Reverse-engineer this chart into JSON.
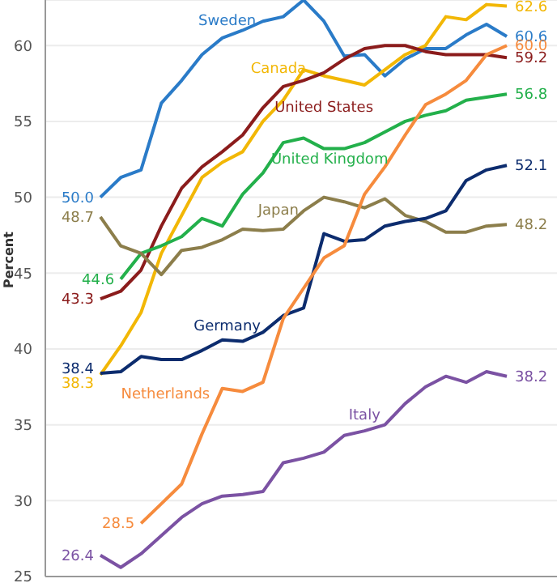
{
  "chart_data": {
    "type": "line",
    "ylabel": "Percent",
    "categories": [
      null,
      null,
      null,
      null,
      null,
      null,
      null,
      null,
      null,
      null,
      null,
      null,
      null,
      null,
      null,
      null,
      null,
      null,
      null,
      null,
      null
    ],
    "ylim": [
      25,
      63
    ],
    "yticks": [
      25,
      30,
      35,
      40,
      45,
      50,
      55,
      60
    ],
    "grid": "y",
    "legend": false,
    "marker": "none",
    "line_style": "solid",
    "series": [
      {
        "name": "Sweden",
        "color": "#2a7bc8",
        "values": [
          50.0,
          51.3,
          51.8,
          56.2,
          57.7,
          59.4,
          60.5,
          61.0,
          61.6,
          61.9,
          63.0,
          61.6,
          59.3,
          59.4,
          58.0,
          59.1,
          59.8,
          59.8,
          60.7,
          61.4,
          60.6
        ],
        "value_labels": [
          "50.0",
          null,
          null,
          null,
          null,
          null,
          null,
          null,
          null,
          null,
          null,
          null,
          null,
          null,
          null,
          null,
          null,
          null,
          null,
          null,
          "60.6"
        ]
      },
      {
        "name": "Canada",
        "color": "#f2b705",
        "values": [
          38.3,
          40.2,
          42.4,
          46.3,
          48.8,
          51.3,
          52.3,
          53.0,
          55.0,
          56.4,
          58.4,
          58.0,
          57.7,
          57.4,
          58.4,
          59.4,
          60.0,
          61.9,
          61.7,
          62.7,
          62.6
        ],
        "value_labels": [
          "38.3",
          null,
          null,
          null,
          null,
          null,
          null,
          null,
          null,
          null,
          null,
          null,
          null,
          null,
          null,
          null,
          null,
          null,
          null,
          null,
          "62.6"
        ]
      },
      {
        "name": "United States",
        "color": "#8b1c1c",
        "values": [
          43.3,
          43.8,
          45.2,
          48.1,
          50.6,
          52.0,
          53.0,
          54.1,
          55.9,
          57.3,
          57.7,
          58.2,
          59.1,
          59.8,
          60.0,
          60.0,
          59.6,
          59.4,
          59.4,
          59.4,
          59.2
        ],
        "value_labels": [
          "43.3",
          null,
          null,
          null,
          null,
          null,
          null,
          null,
          null,
          null,
          null,
          null,
          null,
          null,
          null,
          null,
          null,
          null,
          null,
          null,
          "59.2"
        ]
      },
      {
        "name": "United Kingdom",
        "color": "#23b04b",
        "values": [
          null,
          44.6,
          46.3,
          46.8,
          47.4,
          48.6,
          48.1,
          50.2,
          51.6,
          53.6,
          53.9,
          53.2,
          53.2,
          53.6,
          54.3,
          55.0,
          55.4,
          55.7,
          56.4,
          56.6,
          56.8
        ],
        "value_labels": [
          null,
          "44.6",
          null,
          null,
          null,
          null,
          null,
          null,
          null,
          null,
          null,
          null,
          null,
          null,
          null,
          null,
          null,
          null,
          null,
          null,
          "56.8"
        ]
      },
      {
        "name": "Japan",
        "color": "#8c7e4b",
        "values": [
          48.7,
          46.8,
          46.3,
          44.9,
          46.5,
          46.7,
          47.2,
          47.9,
          47.8,
          47.9,
          49.1,
          50.0,
          49.7,
          49.3,
          49.9,
          48.8,
          48.4,
          47.7,
          47.7,
          48.1,
          48.2
        ],
        "value_labels": [
          "48.7",
          null,
          null,
          null,
          null,
          null,
          null,
          null,
          null,
          null,
          null,
          null,
          null,
          null,
          null,
          null,
          null,
          null,
          null,
          null,
          "48.2"
        ]
      },
      {
        "name": "Germany",
        "color": "#0c2c6e",
        "values": [
          38.4,
          38.5,
          39.5,
          39.3,
          39.3,
          39.9,
          40.6,
          40.5,
          41.1,
          42.2,
          42.7,
          47.6,
          47.1,
          47.2,
          48.1,
          48.4,
          48.6,
          49.1,
          51.1,
          51.8,
          52.1
        ],
        "value_labels": [
          "38.4",
          null,
          null,
          null,
          null,
          null,
          null,
          null,
          null,
          null,
          null,
          null,
          null,
          null,
          null,
          null,
          null,
          null,
          null,
          null,
          "52.1"
        ]
      },
      {
        "name": "Netherlands",
        "color": "#f68b3d",
        "values": [
          null,
          null,
          28.5,
          29.8,
          31.1,
          34.4,
          37.4,
          37.2,
          37.8,
          42.0,
          44.0,
          46.0,
          46.8,
          50.2,
          52.0,
          54.1,
          56.1,
          56.8,
          57.7,
          59.4,
          60.0
        ],
        "value_labels": [
          null,
          null,
          "28.5",
          null,
          null,
          null,
          null,
          null,
          null,
          null,
          null,
          null,
          null,
          null,
          null,
          null,
          null,
          null,
          null,
          null,
          "60.0"
        ]
      },
      {
        "name": "Italy",
        "color": "#7b52a3",
        "values": [
          26.4,
          25.6,
          26.5,
          27.7,
          28.9,
          29.8,
          30.3,
          30.4,
          30.6,
          32.5,
          32.8,
          33.2,
          34.3,
          34.6,
          35.0,
          36.4,
          37.5,
          38.2,
          37.8,
          38.5,
          38.2
        ],
        "value_labels": [
          "26.4",
          null,
          null,
          null,
          null,
          null,
          null,
          null,
          null,
          null,
          null,
          null,
          null,
          null,
          null,
          null,
          null,
          null,
          null,
          null,
          "38.2"
        ]
      }
    ]
  }
}
